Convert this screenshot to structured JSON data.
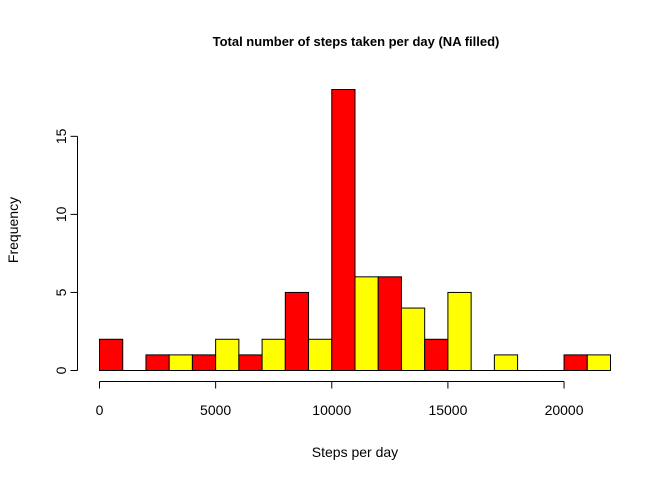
{
  "chart_data": {
    "type": "bar",
    "title": "Total number of steps taken per day (NA filled)",
    "xlabel": "Steps per day",
    "ylabel": "Frequency",
    "xlim": [
      0,
      22000
    ],
    "ylim": [
      0,
      18
    ],
    "x_ticks": [
      0,
      5000,
      10000,
      15000,
      20000
    ],
    "y_ticks": [
      0,
      5,
      10,
      15
    ],
    "bin_width": 1000,
    "bins": [
      {
        "start": 0,
        "end": 1000,
        "count": 2
      },
      {
        "start": 1000,
        "end": 2000,
        "count": 0
      },
      {
        "start": 2000,
        "end": 3000,
        "count": 1
      },
      {
        "start": 3000,
        "end": 4000,
        "count": 1
      },
      {
        "start": 4000,
        "end": 5000,
        "count": 1
      },
      {
        "start": 5000,
        "end": 6000,
        "count": 2
      },
      {
        "start": 6000,
        "end": 7000,
        "count": 1
      },
      {
        "start": 7000,
        "end": 8000,
        "count": 2
      },
      {
        "start": 8000,
        "end": 9000,
        "count": 5
      },
      {
        "start": 9000,
        "end": 10000,
        "count": 2
      },
      {
        "start": 10000,
        "end": 11000,
        "count": 18
      },
      {
        "start": 11000,
        "end": 12000,
        "count": 6
      },
      {
        "start": 12000,
        "end": 13000,
        "count": 6
      },
      {
        "start": 13000,
        "end": 14000,
        "count": 4
      },
      {
        "start": 14000,
        "end": 15000,
        "count": 2
      },
      {
        "start": 15000,
        "end": 16000,
        "count": 5
      },
      {
        "start": 16000,
        "end": 17000,
        "count": 0
      },
      {
        "start": 17000,
        "end": 18000,
        "count": 1
      },
      {
        "start": 18000,
        "end": 19000,
        "count": 0
      },
      {
        "start": 19000,
        "end": 20000,
        "count": 0
      },
      {
        "start": 20000,
        "end": 21000,
        "count": 1
      },
      {
        "start": 21000,
        "end": 22000,
        "count": 1
      }
    ],
    "bar_colors": [
      "#FF0000",
      "#FFFF00"
    ],
    "grid": false,
    "legend": "none"
  }
}
